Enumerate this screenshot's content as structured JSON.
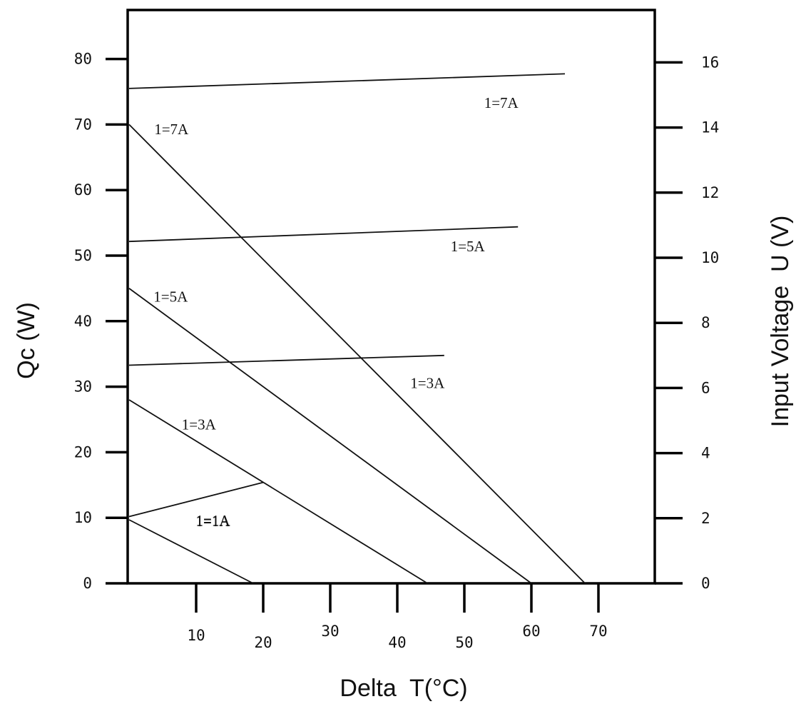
{
  "chart_data": {
    "type": "line",
    "xlabel": "Delta  T(°C)",
    "ylabel_left": "Qc (W)",
    "ylabel_right": "Input Voltage  U (V)",
    "xlim": [
      0,
      80
    ],
    "ylim_left": [
      0,
      80
    ],
    "ylim_right": [
      0,
      16
    ],
    "x_ticks": [
      10,
      20,
      30,
      40,
      50,
      60,
      70
    ],
    "y_ticks_left": [
      0,
      10,
      20,
      30,
      40,
      50,
      60,
      70,
      80
    ],
    "y_ticks_right": [
      0,
      2,
      4,
      6,
      8,
      10,
      12,
      14,
      16
    ],
    "grid": false,
    "cooling_capacity_series": [
      {
        "name": "1=1A",
        "axis": "left",
        "x": [
          0,
          18.5
        ],
        "y": [
          9.7,
          0
        ]
      },
      {
        "name": "1=3A",
        "axis": "left",
        "x": [
          0,
          44.5
        ],
        "y": [
          28,
          0
        ]
      },
      {
        "name": "1=5A",
        "axis": "left",
        "x": [
          0,
          60
        ],
        "y": [
          45,
          0
        ]
      },
      {
        "name": "1=7A",
        "axis": "left",
        "x": [
          0,
          68
        ],
        "y": [
          70,
          0
        ]
      }
    ],
    "voltage_series": [
      {
        "name": "1=1A",
        "axis": "right",
        "x": [
          0,
          20
        ],
        "y": [
          2.05,
          3.1
        ]
      },
      {
        "name": "1=3A",
        "axis": "right",
        "x": [
          0,
          47
        ],
        "y": [
          6.7,
          7.0
        ]
      },
      {
        "name": "1=5A",
        "axis": "right",
        "x": [
          0,
          58
        ],
        "y": [
          10.5,
          10.95
        ]
      },
      {
        "name": "1=7A",
        "axis": "right",
        "x": [
          0,
          65
        ],
        "y": [
          15.2,
          15.65
        ]
      }
    ]
  }
}
